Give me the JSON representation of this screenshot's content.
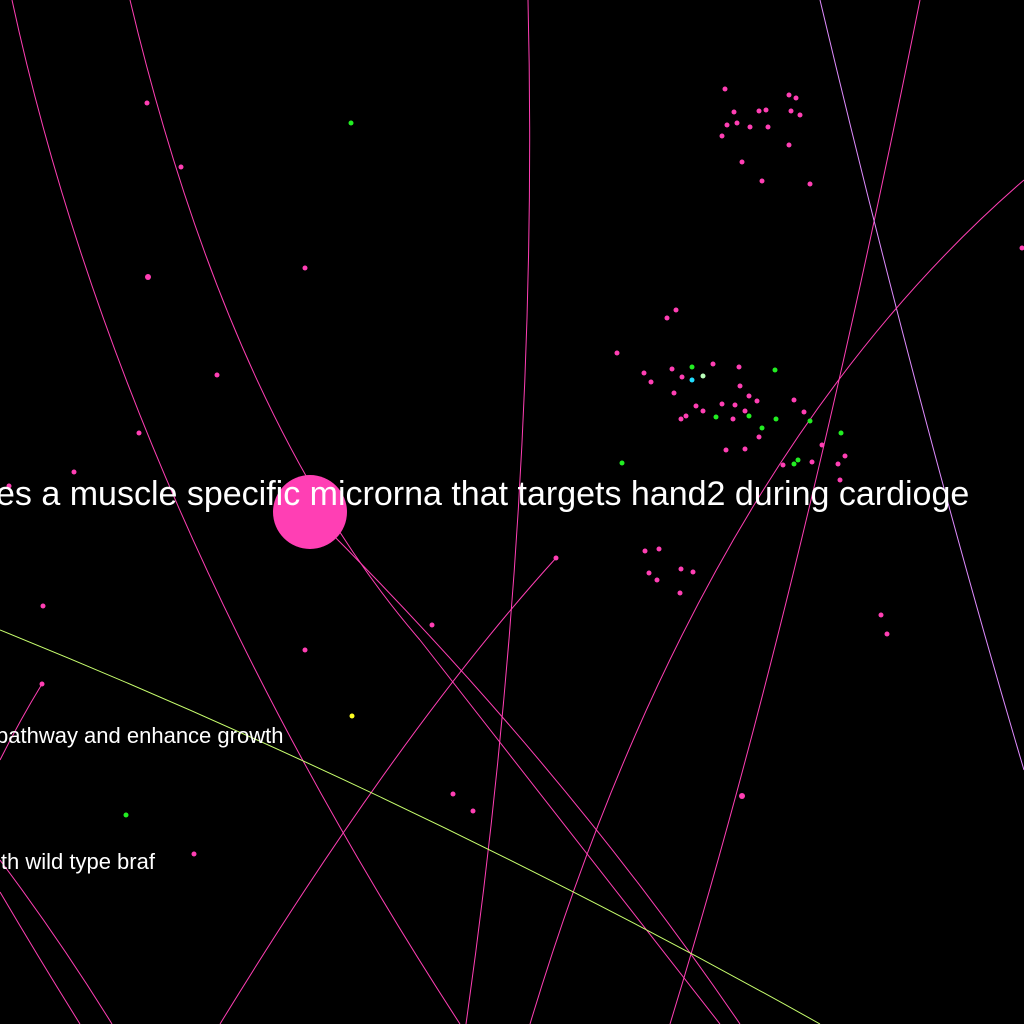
{
  "labels": {
    "big": "es a muscle specific microrna that targets hand2 during cardioge",
    "mid": "pathway and enhance growth",
    "low": "ith wild type braf"
  },
  "colors": {
    "background": "#000000",
    "edge_pink": "#ff3fb4",
    "edge_yellow_green": "#c8ff6e",
    "edge_lilac": "#e08cff",
    "node_pink": "#ff3fb4",
    "node_green": "#22ee22",
    "node_cyan": "#22ddff",
    "node_yellow": "#ffff22",
    "node_pale_green": "#bbffbb",
    "text": "#ffffff"
  }
}
